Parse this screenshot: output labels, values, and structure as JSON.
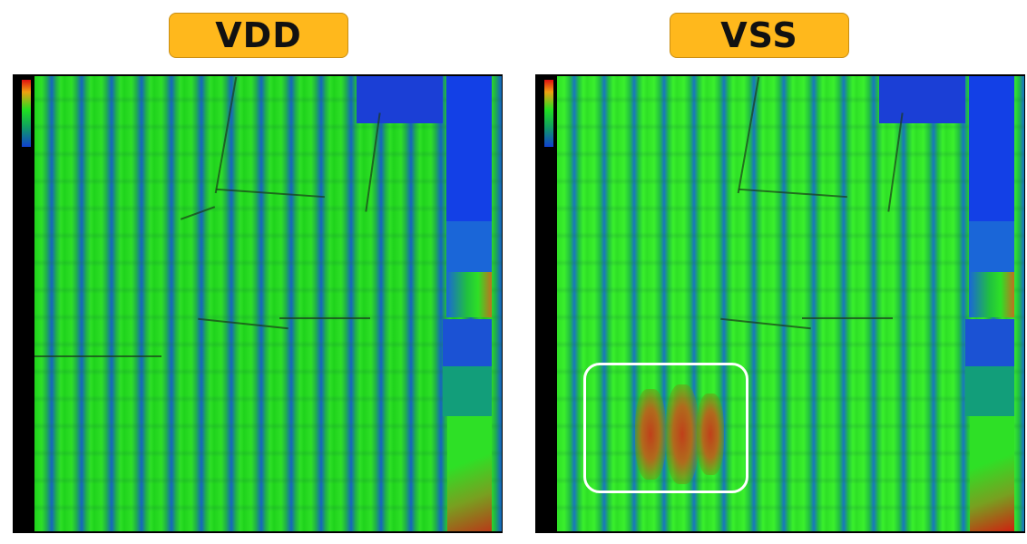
{
  "panels": {
    "vdd": {
      "title": "VDD"
    },
    "vss": {
      "title": "VSS"
    }
  },
  "colors": {
    "badge": "#ffb81c",
    "high": "#e01010",
    "mid": "#20e020",
    "low": "#1040d0",
    "highlight_box": "#ffffff"
  }
}
